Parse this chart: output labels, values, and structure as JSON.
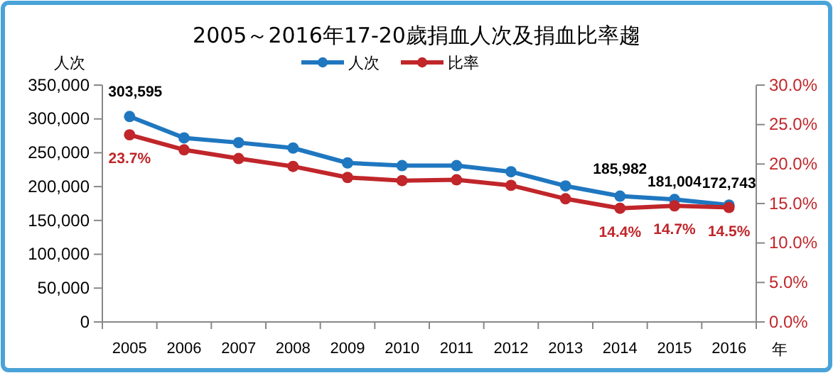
{
  "chart_data": {
    "type": "line",
    "title": "2005～2016年17-20歲捐血人次及捐血比率趨",
    "ylabel": "人次",
    "xlabel": "年",
    "categories": [
      "2005",
      "2006",
      "2007",
      "2008",
      "2009",
      "2010",
      "2011",
      "2012",
      "2013",
      "2014",
      "2015",
      "2016"
    ],
    "series": [
      {
        "name": "人次",
        "color": "#1f77c0",
        "values": [
          303595,
          272000,
          265000,
          257000,
          235000,
          231000,
          231000,
          222000,
          201000,
          185982,
          181004,
          172743
        ],
        "value_labels": [
          "303,595",
          null,
          null,
          null,
          null,
          null,
          null,
          null,
          null,
          "185,982",
          "181,004",
          "172,743"
        ]
      },
      {
        "name": "比率",
        "color": "#c0262a",
        "axis": "y2",
        "values": [
          23.7,
          21.8,
          20.7,
          19.7,
          18.3,
          17.9,
          18.0,
          17.3,
          15.6,
          14.4,
          14.7,
          14.5
        ],
        "value_labels": [
          "23.7%",
          null,
          null,
          null,
          null,
          null,
          null,
          null,
          null,
          "14.4%",
          "14.7%",
          "14.5%"
        ]
      }
    ],
    "ylim": [
      0,
      350000
    ],
    "yticks": [
      0,
      {
        "value": 50000,
        "label": "50,000"
      },
      {
        "value": 100000,
        "label": "100,000"
      },
      {
        "value": 150000,
        "label": "150,000"
      },
      {
        "value": 200000,
        "label": "200,000"
      },
      {
        "value": 250000,
        "label": "250,000"
      },
      {
        "value": 300000,
        "label": "300,000"
      },
      {
        "value": 350000,
        "label": "350,000"
      }
    ],
    "y2lim": [
      0,
      30
    ],
    "y2ticks": [
      {
        "value": 0,
        "label": "0.0%"
      },
      {
        "value": 5,
        "label": "5.0%"
      },
      {
        "value": 10,
        "label": "10.0%"
      },
      {
        "value": 15,
        "label": "15.0%"
      },
      {
        "value": 20,
        "label": "20.0%"
      },
      {
        "value": 25,
        "label": "25.0%"
      },
      {
        "value": 30,
        "label": "30.0%"
      }
    ],
    "legend": "top",
    "marker": "circle",
    "line_style": "solid",
    "grid": false
  }
}
